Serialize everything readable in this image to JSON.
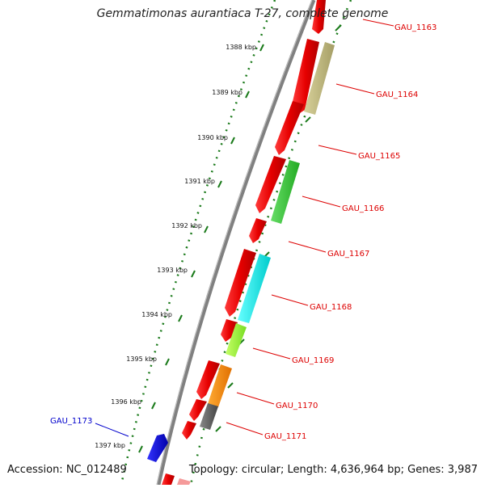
{
  "title": "Gemmatimonas aurantiaca T-27, complete genome",
  "accession": "Accession: NC_012489",
  "summary": "Topology: circular; Length: 4,636,964 bp; Genes: 3,987",
  "colors": {
    "label_red": "#dd0000",
    "label_blue": "#0000cc",
    "tick_green": "#1a7a1a",
    "backbone": "#808080"
  },
  "ticks": [
    {
      "label": "1388 kbp"
    },
    {
      "label": "1389 kbp"
    },
    {
      "label": "1390 kbp"
    },
    {
      "label": "1391 kbp"
    },
    {
      "label": "1392 kbp"
    },
    {
      "label": "1393 kbp"
    },
    {
      "label": "1394 kbp"
    },
    {
      "label": "1395 kbp"
    },
    {
      "label": "1396 kbp"
    },
    {
      "label": "1397 kbp"
    }
  ],
  "gene_labels": [
    {
      "name": "GAU_1163",
      "color": "#dd0000"
    },
    {
      "name": "GAU_1164",
      "color": "#dd0000"
    },
    {
      "name": "GAU_1165",
      "color": "#dd0000"
    },
    {
      "name": "GAU_1166",
      "color": "#dd0000"
    },
    {
      "name": "GAU_1167",
      "color": "#dd0000"
    },
    {
      "name": "GAU_1168",
      "color": "#dd0000"
    },
    {
      "name": "GAU_1169",
      "color": "#dd0000"
    },
    {
      "name": "GAU_1170",
      "color": "#dd0000"
    },
    {
      "name": "GAU_1171",
      "color": "#dd0000"
    },
    {
      "name": "GAU_1173",
      "color": "#0000cc"
    }
  ],
  "feature_colors": [
    "#ee0000",
    "#bdb57a",
    "#33cc33",
    "#00e5e5",
    "#99ff33",
    "#ff8c00",
    "#666666",
    "#0000ee"
  ]
}
